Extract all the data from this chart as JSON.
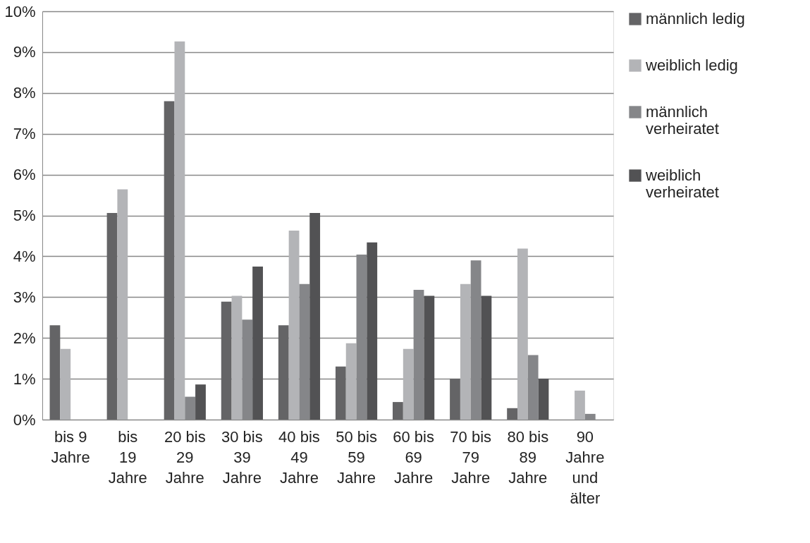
{
  "chart_data": {
    "type": "bar",
    "categories": [
      "bis 9\nJahre",
      "bis\n19\nJahre",
      "20 bis\n29\nJahre",
      "30 bis\n39\nJahre",
      "40 bis\n49\nJahre",
      "50 bis\n59\nJahre",
      "60 bis\n69\nJahre",
      "70 bis\n79\nJahre",
      "80 bis\n89\nJahre",
      "90\nJahre\nund\nälter"
    ],
    "series": [
      {
        "name": "männlich ledig",
        "color": "#646466",
        "values": [
          2.31,
          5.06,
          7.8,
          2.89,
          2.31,
          1.3,
          0.43,
          1.0,
          0.28,
          0
        ]
      },
      {
        "name": "weiblich ledig",
        "color": "#b3b4b7",
        "values": [
          1.73,
          5.64,
          9.26,
          3.03,
          4.63,
          1.87,
          1.73,
          3.32,
          4.19,
          0.71
        ]
      },
      {
        "name": "männlich verheiratet",
        "color": "#858689",
        "values": [
          0,
          0,
          0.56,
          2.45,
          3.32,
          4.04,
          3.18,
          3.9,
          1.58,
          0.14
        ]
      },
      {
        "name": "weiblich verheiratet",
        "color": "#525254",
        "values": [
          0,
          0,
          0.86,
          3.75,
          5.06,
          4.34,
          3.03,
          3.03,
          1.0,
          0
        ]
      }
    ],
    "ylim": [
      0,
      10
    ],
    "yticks": [
      {
        "value": 0,
        "label": "0%"
      },
      {
        "value": 1,
        "label": "1%"
      },
      {
        "value": 2,
        "label": "2%"
      },
      {
        "value": 3,
        "label": "3%"
      },
      {
        "value": 4,
        "label": "4%"
      },
      {
        "value": 5,
        "label": "5%"
      },
      {
        "value": 6,
        "label": "6%"
      },
      {
        "value": 7,
        "label": "7%"
      },
      {
        "value": 8,
        "label": "8%"
      },
      {
        "value": 9,
        "label": "9%"
      },
      {
        "value": 10,
        "label": "10%"
      }
    ],
    "grid": "y",
    "legend": "right"
  }
}
